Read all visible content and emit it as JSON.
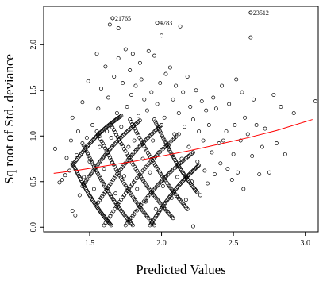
{
  "chart_data": {
    "type": "scatter",
    "title": "",
    "xlabel": "Predicted Values",
    "ylabel": "Sq root of Std. deviance",
    "xlim": [
      1.18,
      3.09
    ],
    "ylim": [
      -0.05,
      2.42
    ],
    "x_ticks": [
      1.5,
      2.0,
      2.5,
      3.0
    ],
    "x_tick_labels": [
      "1.5",
      "2.0",
      "2.5",
      "3.0"
    ],
    "y_ticks": [
      0.0,
      0.5,
      1.0,
      1.5,
      2.0
    ],
    "y_tick_labels": [
      "0.0",
      "0.5",
      "1.0",
      "1.5",
      "2.0"
    ],
    "grid": false,
    "legend": "none",
    "point_color": "#000000",
    "line_color": "#ff0000",
    "trend_line": {
      "x": [
        1.25,
        1.4,
        1.6,
        1.8,
        2.0,
        2.2,
        2.4,
        2.6,
        2.8,
        3.05
      ],
      "y": [
        0.59,
        0.62,
        0.67,
        0.72,
        0.78,
        0.84,
        0.91,
        0.98,
        1.06,
        1.18
      ]
    },
    "annotations": [
      {
        "label": "21765",
        "x": 1.66,
        "y": 2.29
      },
      {
        "label": "4783",
        "x": 1.97,
        "y": 2.24
      },
      {
        "label": "23512",
        "x": 2.62,
        "y": 2.35
      }
    ],
    "series": [
      {
        "points": [
          [
            1.26,
            0.86
          ],
          [
            1.29,
            0.49
          ],
          [
            1.31,
            0.52
          ],
          [
            1.33,
            0.57
          ],
          [
            1.34,
            0.76
          ],
          [
            1.36,
            0.62
          ],
          [
            1.37,
            0.95
          ],
          [
            1.38,
            1.2
          ],
          [
            1.38,
            0.18
          ],
          [
            1.4,
            0.13
          ],
          [
            1.41,
            0.79
          ],
          [
            1.42,
            1.05
          ],
          [
            1.43,
            0.35
          ],
          [
            1.45,
            1.37
          ],
          [
            1.46,
            0.55
          ],
          [
            1.48,
            0.98
          ],
          [
            1.49,
            1.6
          ],
          [
            1.5,
            0.72
          ],
          [
            1.52,
            1.12
          ],
          [
            1.53,
            0.42
          ],
          [
            1.55,
            1.9
          ],
          [
            1.56,
            1.3
          ],
          [
            1.57,
            0.88
          ],
          [
            1.58,
            1.52
          ],
          [
            1.6,
            0.64
          ],
          [
            1.61,
            1.76
          ],
          [
            1.62,
            1.05
          ],
          [
            1.63,
            1.42
          ],
          [
            1.64,
            2.22
          ],
          [
            1.65,
            0.98
          ],
          [
            1.66,
            2.29
          ],
          [
            1.67,
            1.65
          ],
          [
            1.68,
            0.37
          ],
          [
            1.69,
            1.25
          ],
          [
            1.7,
            2.18
          ],
          [
            1.7,
            1.85
          ],
          [
            1.72,
            1.1
          ],
          [
            1.73,
            1.58
          ],
          [
            1.74,
            0.56
          ],
          [
            1.75,
            1.95
          ],
          [
            1.76,
            1.32
          ],
          [
            1.77,
            0.88
          ],
          [
            1.78,
            1.72
          ],
          [
            1.79,
            1.45
          ],
          [
            1.8,
            1.9
          ],
          [
            1.81,
            0.95
          ],
          [
            1.82,
            1.55
          ],
          [
            1.83,
            0.42
          ],
          [
            1.84,
            1.22
          ],
          [
            1.85,
            1.8
          ],
          [
            1.86,
            1.62
          ],
          [
            1.87,
            0.75
          ],
          [
            1.88,
            1.4
          ],
          [
            1.89,
            0.28
          ],
          [
            1.9,
            1.28
          ],
          [
            1.91,
            1.93
          ],
          [
            1.92,
            0.6
          ],
          [
            1.93,
            1.48
          ],
          [
            1.94,
            0.95
          ],
          [
            1.95,
            1.88
          ],
          [
            1.96,
            0.2
          ],
          [
            1.97,
            2.24
          ],
          [
            1.97,
            1.35
          ],
          [
            1.98,
            0.82
          ],
          [
            1.99,
            1.58
          ],
          [
            2.0,
            2.1
          ],
          [
            2.01,
            0.45
          ],
          [
            2.02,
            1.2
          ],
          [
            2.03,
            1.68
          ],
          [
            2.05,
            0.9
          ],
          [
            2.06,
            1.75
          ],
          [
            2.07,
            0.32
          ],
          [
            2.08,
            1.4
          ],
          [
            2.09,
            1.02
          ],
          [
            2.1,
            1.55
          ],
          [
            2.11,
            0.55
          ],
          [
            2.12,
            1.25
          ],
          [
            2.13,
            2.2
          ],
          [
            2.14,
            0.75
          ],
          [
            2.15,
            1.48
          ],
          [
            2.16,
            1.1
          ],
          [
            2.17,
            0.3
          ],
          [
            2.18,
            1.65
          ],
          [
            2.19,
            0.88
          ],
          [
            2.2,
            1.32
          ],
          [
            2.21,
            0.5
          ],
          [
            2.22,
            1.18
          ],
          [
            2.22,
            0.01
          ],
          [
            2.24,
            1.5
          ],
          [
            2.25,
            0.72
          ],
          [
            2.26,
            1.05
          ],
          [
            2.27,
            0.35
          ],
          [
            2.28,
            1.38
          ],
          [
            2.29,
            0.95
          ],
          [
            2.3,
            0.62
          ],
          [
            2.31,
            1.28
          ],
          [
            2.32,
            0.48
          ],
          [
            2.33,
            1.12
          ],
          [
            2.35,
            0.82
          ],
          [
            2.36,
            1.42
          ],
          [
            2.37,
            0.58
          ],
          [
            2.38,
            1.3
          ],
          [
            2.4,
            0.92
          ],
          [
            2.41,
            0.7
          ],
          [
            2.42,
            1.55
          ],
          [
            2.43,
            0.95
          ],
          [
            2.45,
            1.05
          ],
          [
            2.46,
            0.64
          ],
          [
            2.47,
            1.35
          ],
          [
            2.49,
            0.52
          ],
          [
            2.5,
            0.8
          ],
          [
            2.51,
            1.12
          ],
          [
            2.52,
            1.62
          ],
          [
            2.53,
            0.6
          ],
          [
            2.55,
            0.95
          ],
          [
            2.56,
            1.48
          ],
          [
            2.57,
            0.42
          ],
          [
            2.58,
            1.2
          ],
          [
            2.6,
            1.02
          ],
          [
            2.62,
            2.35
          ],
          [
            2.62,
            2.08
          ],
          [
            2.63,
            0.78
          ],
          [
            2.64,
            1.4
          ],
          [
            2.66,
            1.12
          ],
          [
            2.68,
            0.58
          ],
          [
            2.7,
            0.88
          ],
          [
            2.72,
            1.08
          ],
          [
            2.75,
            0.6
          ],
          [
            2.78,
            1.45
          ],
          [
            2.8,
            0.92
          ],
          [
            2.83,
            1.32
          ],
          [
            2.86,
            0.8
          ],
          [
            2.92,
            1.25
          ],
          [
            3.07,
            1.38
          ]
        ]
      }
    ],
    "dense_arcs": [
      {
        "x0": 1.38,
        "y0": 0.68,
        "x1": 1.72,
        "y1": 1.22,
        "bend": 0.05
      },
      {
        "x0": 1.45,
        "y0": 0.45,
        "x1": 1.85,
        "y1": 1.17,
        "bend": 0.06
      },
      {
        "x0": 1.55,
        "y0": 0.25,
        "x1": 2.0,
        "y1": 1.12,
        "bend": 0.07
      },
      {
        "x0": 1.6,
        "y0": 0.02,
        "x1": 2.12,
        "y1": 1.02,
        "bend": 0.08
      },
      {
        "x0": 1.75,
        "y0": 0.02,
        "x1": 2.22,
        "y1": 0.82,
        "bend": 0.06
      },
      {
        "x0": 1.92,
        "y0": 0.02,
        "x1": 2.26,
        "y1": 0.68,
        "bend": 0.05
      },
      {
        "x0": 1.38,
        "y0": 0.7,
        "x1": 1.65,
        "y1": 0.02,
        "bend": -0.05
      },
      {
        "x0": 1.45,
        "y0": 0.92,
        "x1": 1.8,
        "y1": 0.02,
        "bend": -0.07
      },
      {
        "x0": 1.55,
        "y0": 1.05,
        "x1": 1.95,
        "y1": 0.02,
        "bend": -0.08
      },
      {
        "x0": 1.65,
        "y0": 1.12,
        "x1": 2.08,
        "y1": 0.1,
        "bend": -0.08
      },
      {
        "x0": 1.78,
        "y0": 1.18,
        "x1": 2.18,
        "y1": 0.2,
        "bend": -0.07
      },
      {
        "x0": 1.95,
        "y0": 1.18,
        "x1": 2.25,
        "y1": 0.38,
        "bend": -0.06
      }
    ]
  }
}
